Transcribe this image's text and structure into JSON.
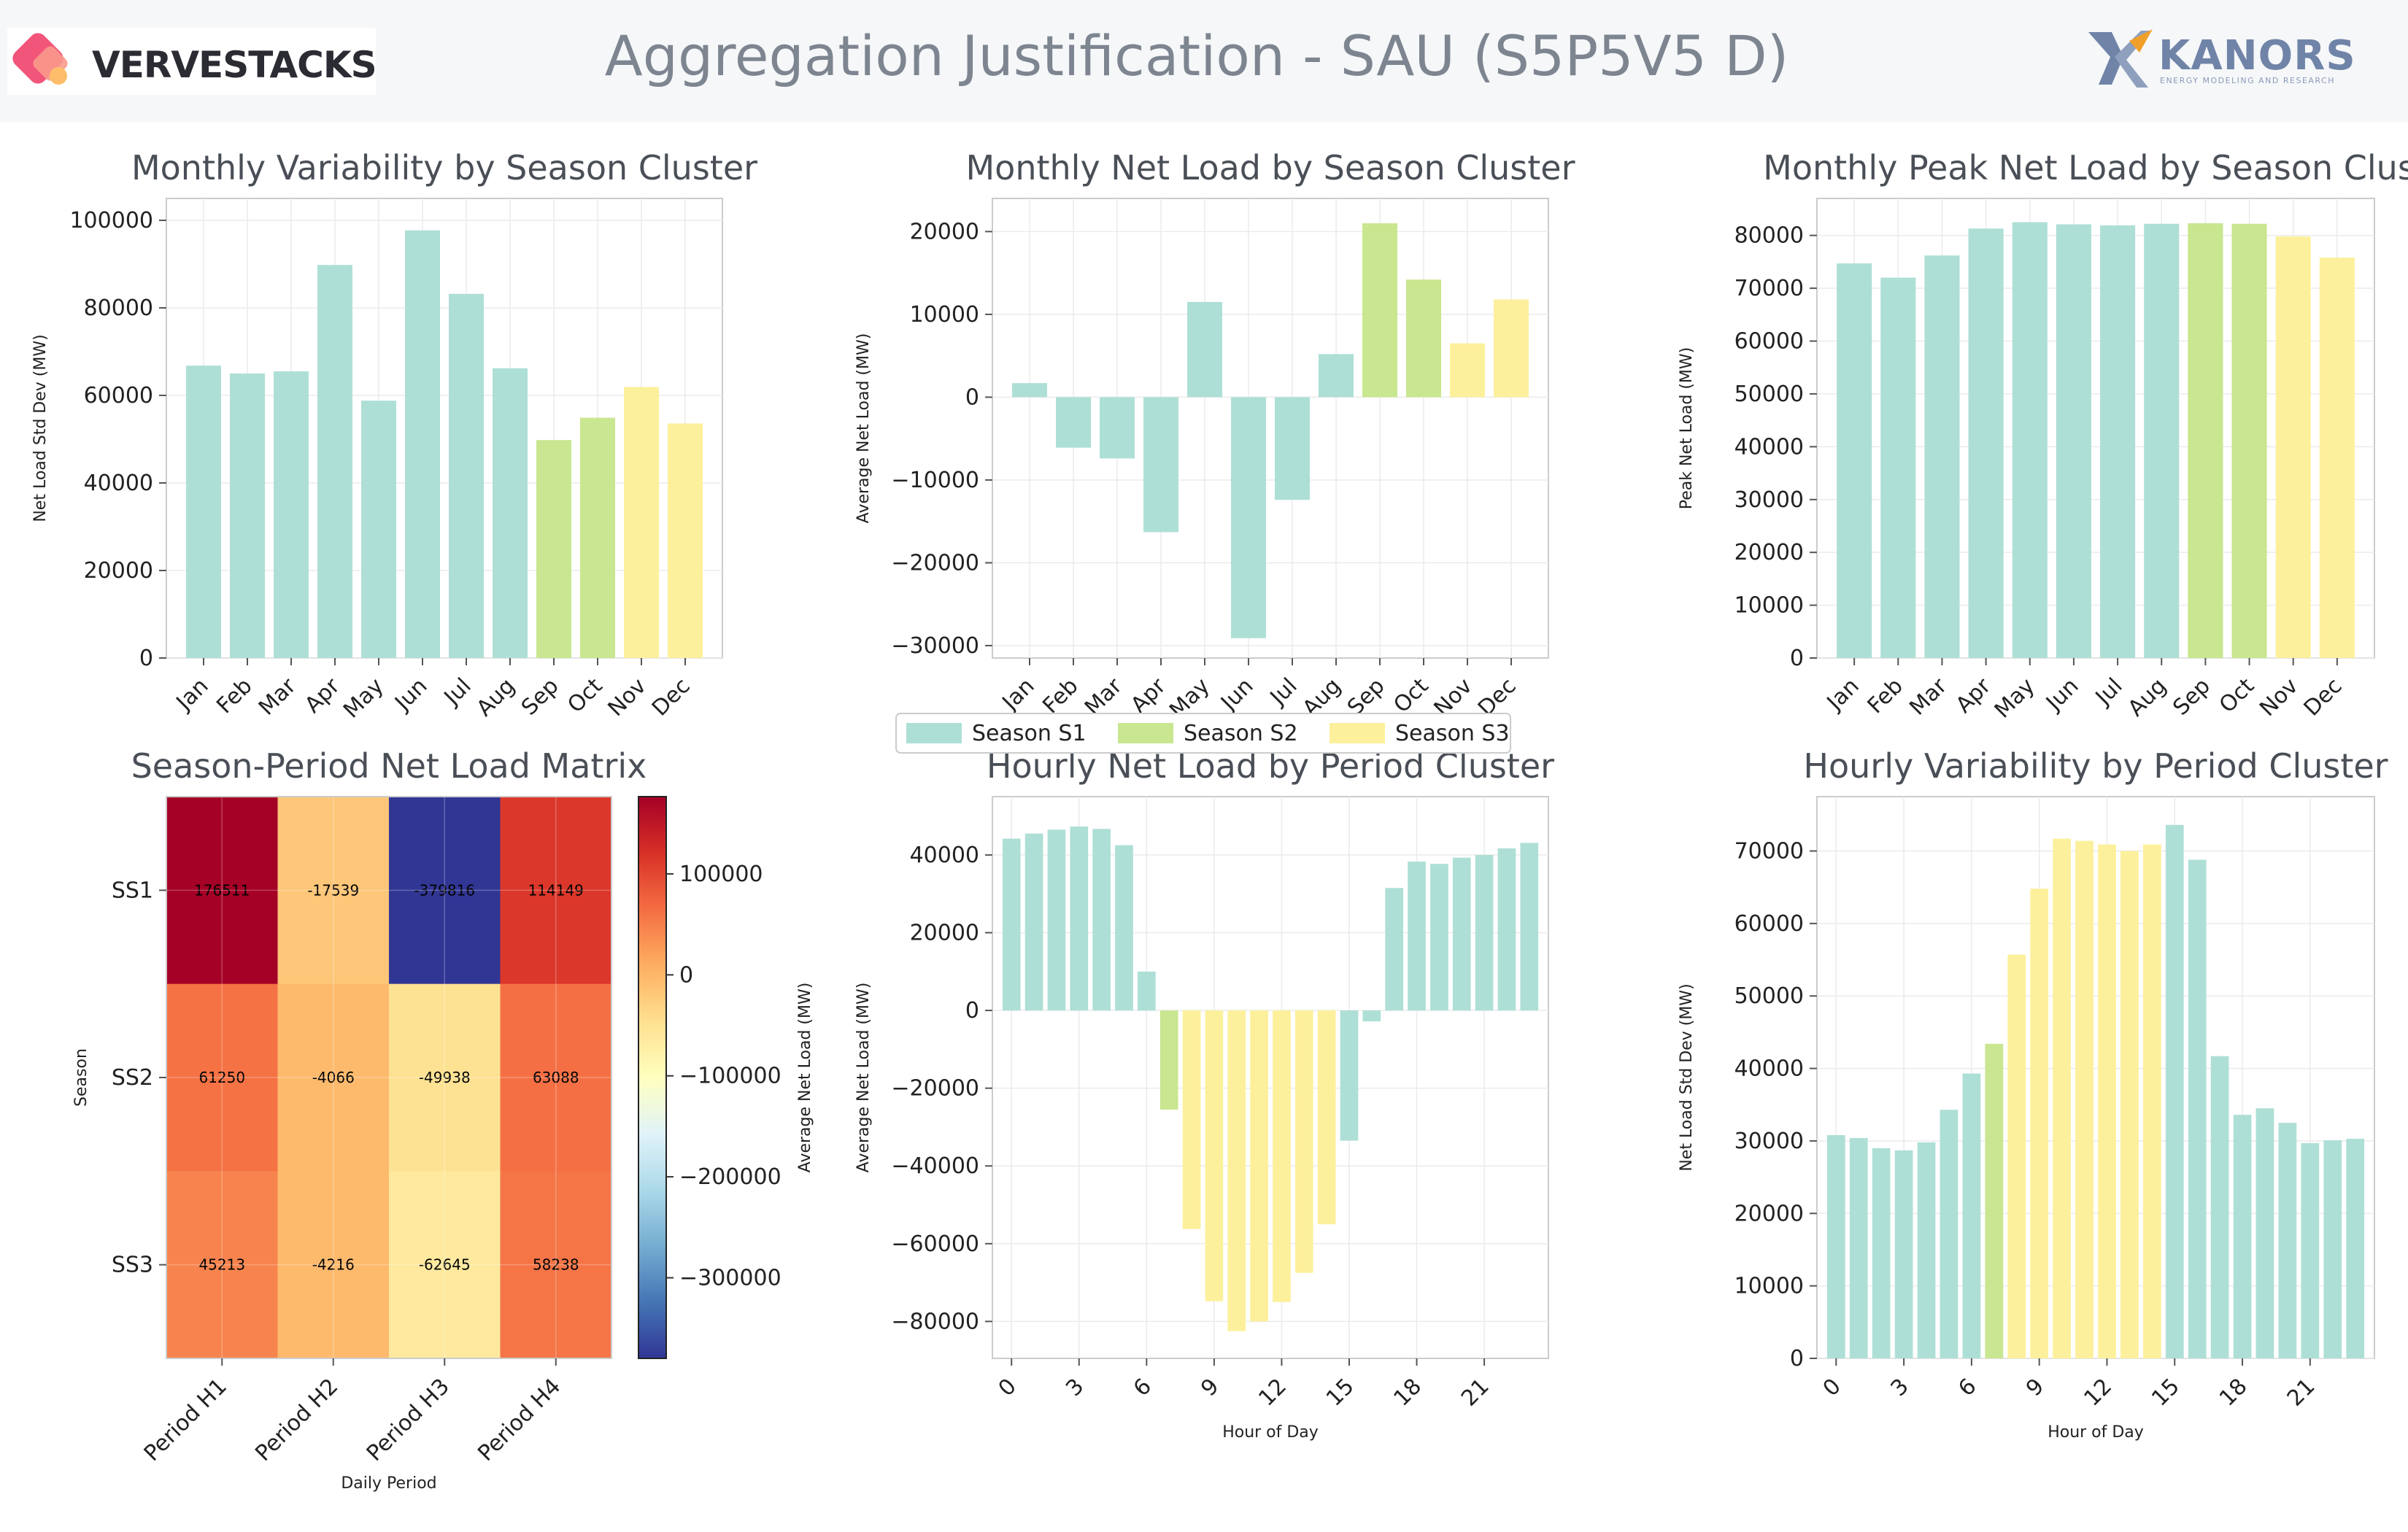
{
  "header": {
    "title": "Aggregation Justification - SAU (S5P5V5 D)",
    "left_logo": "VERVESTACKS",
    "right_logo": "KANORS",
    "right_logo_tagline": "ENERGY MODELING AND RESEARCH"
  },
  "colors": {
    "season_s1": "#aedfd6",
    "season_s2": "#c9e690",
    "season_s3": "#fdf09c",
    "grid": "#ebebeb",
    "axes": "#cccccc",
    "title_text": "#4a4f57",
    "brand_left": "#f2557a",
    "brand_right": "#7084a8"
  },
  "legend": {
    "entries": [
      "Season S1",
      "Season S2",
      "Season S3"
    ]
  },
  "chart_data": [
    {
      "id": "monthly-variability",
      "type": "bar",
      "title": "Monthly Variability by Season Cluster",
      "xlabel": "",
      "ylabel": "Net Load Std Dev (MW)",
      "categories": [
        "Jan",
        "Feb",
        "Mar",
        "Apr",
        "May",
        "Jun",
        "Jul",
        "Aug",
        "Sep",
        "Oct",
        "Nov",
        "Dec"
      ],
      "values": [
        66800,
        65000,
        65500,
        89800,
        58800,
        97700,
        83200,
        66200,
        49800,
        54900,
        61900,
        53600
      ],
      "clusters": [
        "S1",
        "S1",
        "S1",
        "S1",
        "S1",
        "S1",
        "S1",
        "S1",
        "S2",
        "S2",
        "S3",
        "S3"
      ],
      "ylim": [
        0,
        105000
      ],
      "yticks": [
        0,
        20000,
        40000,
        60000,
        80000,
        100000
      ],
      "grid": true
    },
    {
      "id": "monthly-net-load",
      "type": "bar",
      "title": "Monthly Net Load by Season Cluster",
      "xlabel": "",
      "ylabel": "Average Net Load (MW)",
      "categories": [
        "Jan",
        "Feb",
        "Mar",
        "Apr",
        "May",
        "Jun",
        "Jul",
        "Aug",
        "Sep",
        "Oct",
        "Nov",
        "Dec"
      ],
      "values": [
        1700,
        -6100,
        -7400,
        -16300,
        11500,
        -29100,
        -12400,
        5200,
        21000,
        14200,
        6500,
        11800
      ],
      "clusters": [
        "S1",
        "S1",
        "S1",
        "S1",
        "S1",
        "S1",
        "S1",
        "S1",
        "S2",
        "S2",
        "S3",
        "S3"
      ],
      "ylim": [
        -31500,
        24000
      ],
      "yticks": [
        -30000,
        -20000,
        -10000,
        0,
        10000,
        20000
      ],
      "grid": true
    },
    {
      "id": "monthly-peak-net-load",
      "type": "bar",
      "title": "Monthly Peak Net Load by Season Clust",
      "xlabel": "",
      "ylabel": "Peak Net Load (MW)",
      "categories": [
        "Jan",
        "Feb",
        "Mar",
        "Apr",
        "May",
        "Jun",
        "Jul",
        "Aug",
        "Sep",
        "Oct",
        "Nov",
        "Dec"
      ],
      "values": [
        74700,
        72000,
        76200,
        81300,
        82500,
        82100,
        81900,
        82200,
        82300,
        82200,
        79800,
        75800
      ],
      "clusters": [
        "S1",
        "S1",
        "S1",
        "S1",
        "S1",
        "S1",
        "S1",
        "S1",
        "S2",
        "S2",
        "S3",
        "S3"
      ],
      "ylim": [
        0,
        87000
      ],
      "yticks": [
        0,
        10000,
        20000,
        30000,
        40000,
        50000,
        60000,
        70000,
        80000
      ],
      "grid": true
    },
    {
      "id": "season-period-matrix",
      "type": "heatmap",
      "title": "Season-Period Net Load Matrix",
      "xlabel": "Daily Period",
      "ylabel": "Season",
      "colorbar_label": "Average Net Load (MW)",
      "rows": [
        "SS1",
        "SS2",
        "SS3"
      ],
      "columns": [
        "Period H1",
        "Period H2",
        "Period H3",
        "Period H4"
      ],
      "values": [
        [
          176511,
          -17539,
          -379816,
          114149
        ],
        [
          61250,
          -4066,
          -49938,
          63088
        ],
        [
          45213,
          -4216,
          -62645,
          58238
        ]
      ],
      "vmin": -379816,
      "vmax": 176511,
      "colorbar_ticks": [
        100000,
        0,
        -100000,
        -200000,
        -300000
      ],
      "colorbar_tick_labels": [
        "100000",
        "0",
        "−100000",
        "−200000",
        "−300000"
      ]
    },
    {
      "id": "hourly-net-load",
      "type": "bar",
      "title": "Hourly Net Load by Period Cluster",
      "xlabel": "Hour of Day",
      "ylabel": "Average Net Load (MW)",
      "x": [
        0,
        1,
        2,
        3,
        4,
        5,
        6,
        7,
        8,
        9,
        10,
        11,
        12,
        13,
        14,
        15,
        16,
        17,
        18,
        19,
        20,
        21,
        22,
        23
      ],
      "values": [
        44200,
        45500,
        46500,
        47300,
        46700,
        42500,
        10000,
        -25500,
        -56200,
        -74800,
        -82500,
        -80000,
        -75000,
        -67500,
        -55000,
        -33500,
        -2800,
        31500,
        38300,
        37700,
        39300,
        40000,
        41700,
        43100
      ],
      "clusters": [
        "S1",
        "S1",
        "S1",
        "S1",
        "S1",
        "S1",
        "S1",
        "S2",
        "S3",
        "S3",
        "S3",
        "S3",
        "S3",
        "S3",
        "S3",
        "S1",
        "S1",
        "S1",
        "S1",
        "S1",
        "S1",
        "S1",
        "S1",
        "S1"
      ],
      "xticks": [
        0,
        3,
        6,
        9,
        12,
        15,
        18,
        21
      ],
      "ylim": [
        -89500,
        55000
      ],
      "yticks": [
        -80000,
        -60000,
        -40000,
        -20000,
        0,
        20000,
        40000
      ],
      "grid": true
    },
    {
      "id": "hourly-variability",
      "type": "bar",
      "title": "Hourly Variability by Period Cluster",
      "xlabel": "Hour of Day",
      "ylabel": "Net Load Std Dev (MW)",
      "x": [
        0,
        1,
        2,
        3,
        4,
        5,
        6,
        7,
        8,
        9,
        10,
        11,
        12,
        13,
        14,
        15,
        16,
        17,
        18,
        19,
        20,
        21,
        22,
        23
      ],
      "values": [
        30800,
        30400,
        29000,
        28700,
        29800,
        34300,
        39300,
        43400,
        55700,
        64800,
        71700,
        71400,
        70900,
        70000,
        70900,
        73600,
        68800,
        41700,
        33600,
        34500,
        32500,
        29700,
        30100,
        30300
      ],
      "clusters": [
        "S1",
        "S1",
        "S1",
        "S1",
        "S1",
        "S1",
        "S1",
        "S2",
        "S3",
        "S3",
        "S3",
        "S3",
        "S3",
        "S3",
        "S3",
        "S1",
        "S1",
        "S1",
        "S1",
        "S1",
        "S1",
        "S1",
        "S1",
        "S1"
      ],
      "xticks": [
        0,
        3,
        6,
        9,
        12,
        15,
        18,
        21
      ],
      "ylim": [
        0,
        77500
      ],
      "yticks": [
        0,
        10000,
        20000,
        30000,
        40000,
        50000,
        60000,
        70000
      ],
      "grid": true
    }
  ]
}
